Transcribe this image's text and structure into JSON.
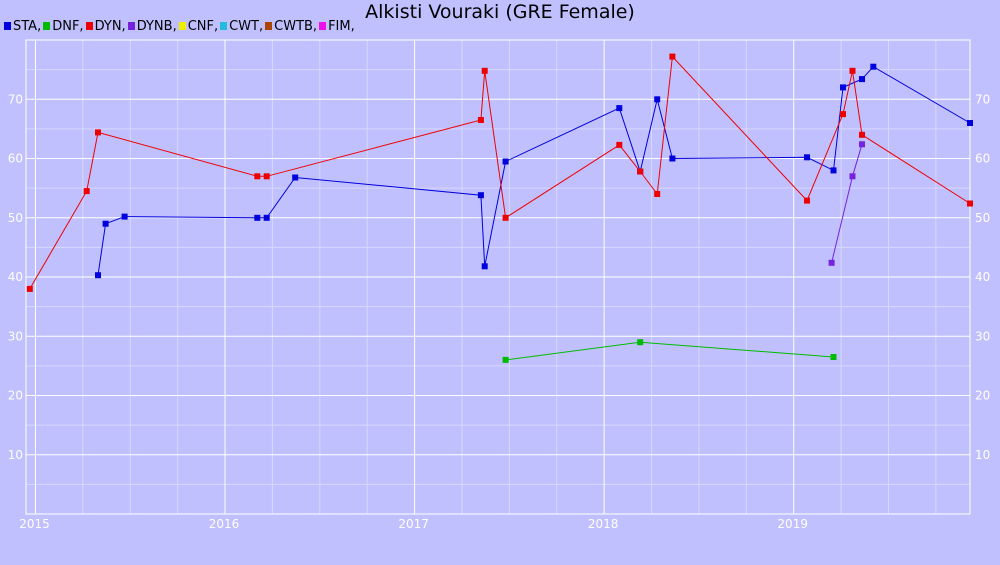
{
  "chart_data": {
    "type": "line",
    "title": "Alkisti Vouraki (GRE Female)",
    "xlabel": "",
    "ylabel": "",
    "xlim": [
      2014.95,
      2019.93
    ],
    "ylim": [
      0,
      80
    ],
    "grid": true,
    "legend_position": "top-left",
    "x_ticks": [
      {
        "value": 2015,
        "label": "2015"
      },
      {
        "value": 2016,
        "label": "2016"
      },
      {
        "value": 2017,
        "label": "2017"
      },
      {
        "value": 2018,
        "label": "2018"
      },
      {
        "value": 2019,
        "label": "2019"
      }
    ],
    "y_ticks": [
      10,
      20,
      30,
      40,
      50,
      60,
      70
    ],
    "legend": [
      {
        "label": "STA,",
        "color": "#0000dd"
      },
      {
        "label": "DNF,",
        "color": "#00bb00"
      },
      {
        "label": "DYN,",
        "color": "#ee0000"
      },
      {
        "label": "DYNB,",
        "color": "#7722dd"
      },
      {
        "label": "CNF,",
        "color": "#eeee00"
      },
      {
        "label": "CWT,",
        "color": "#22bbdd"
      },
      {
        "label": "CWTB,",
        "color": "#aa4400"
      },
      {
        "label": "FIM,",
        "color": "#ee11ee"
      }
    ],
    "series": [
      {
        "name": "STA",
        "color": "#0000dd",
        "points": [
          [
            2015.33,
            40.3
          ],
          [
            2015.37,
            49
          ],
          [
            2015.47,
            50.2
          ],
          [
            2016.17,
            50
          ],
          [
            2016.22,
            50
          ],
          [
            2016.37,
            56.8
          ],
          [
            2017.35,
            53.8
          ],
          [
            2017.37,
            41.8
          ],
          [
            2017.48,
            59.5
          ],
          [
            2018.08,
            68.5
          ],
          [
            2018.19,
            57.8
          ],
          [
            2018.28,
            70
          ],
          [
            2018.36,
            60
          ],
          [
            2019.07,
            60.2
          ],
          [
            2019.21,
            58
          ],
          [
            2019.26,
            72
          ],
          [
            2019.36,
            73.4
          ],
          [
            2019.42,
            75.5
          ],
          [
            2019.93,
            66
          ]
        ]
      },
      {
        "name": "DNF",
        "color": "#00bb00",
        "points": [
          [
            2017.48,
            26
          ],
          [
            2018.19,
            29
          ],
          [
            2019.21,
            26.5
          ]
        ]
      },
      {
        "name": "DYN",
        "color": "#ee0000",
        "points": [
          [
            2014.97,
            38
          ],
          [
            2015.27,
            54.5
          ],
          [
            2015.33,
            64.4
          ],
          [
            2016.17,
            57
          ],
          [
            2016.22,
            57
          ],
          [
            2017.35,
            66.5
          ],
          [
            2017.37,
            74.8
          ],
          [
            2017.48,
            50
          ],
          [
            2018.08,
            62.3
          ],
          [
            2018.19,
            57.8
          ],
          [
            2018.28,
            54
          ],
          [
            2018.36,
            77.2
          ],
          [
            2019.07,
            52.9
          ],
          [
            2019.26,
            67.5
          ],
          [
            2019.31,
            74.8
          ],
          [
            2019.36,
            64
          ],
          [
            2019.93,
            52.4
          ]
        ]
      },
      {
        "name": "DYNB",
        "color": "#7722dd",
        "points": [
          [
            2019.2,
            42.4
          ],
          [
            2019.31,
            57
          ],
          [
            2019.36,
            62.4
          ]
        ]
      }
    ]
  }
}
